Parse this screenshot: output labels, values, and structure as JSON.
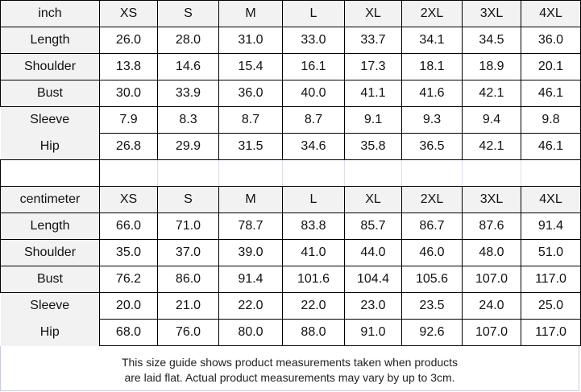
{
  "tables": [
    {
      "unit": "inch",
      "sizes": [
        "XS",
        "S",
        "M",
        "L",
        "XL",
        "2XL",
        "3XL",
        "4XL"
      ],
      "rows": [
        {
          "label": "Length",
          "values": [
            "26.0",
            "28.0",
            "31.0",
            "33.0",
            "33.7",
            "34.1",
            "34.5",
            "36.0"
          ]
        },
        {
          "label": "Shoulder",
          "values": [
            "13.8",
            "14.6",
            "15.4",
            "16.1",
            "17.3",
            "18.1",
            "18.9",
            "20.1"
          ]
        },
        {
          "label": "Bust",
          "values": [
            "30.0",
            "33.9",
            "36.0",
            "40.0",
            "41.1",
            "41.6",
            "42.1",
            "46.1"
          ]
        },
        {
          "label": "Sleeve",
          "values": [
            "7.9",
            "8.3",
            "8.7",
            "8.7",
            "9.1",
            "9.3",
            "9.4",
            "9.8"
          ]
        },
        {
          "label": "Hip",
          "values": [
            "26.8",
            "29.9",
            "31.5",
            "34.6",
            "35.8",
            "36.5",
            "42.1",
            "46.1"
          ]
        }
      ]
    },
    {
      "unit": "centimeter",
      "sizes": [
        "XS",
        "S",
        "M",
        "L",
        "XL",
        "2XL",
        "3XL",
        "4XL"
      ],
      "rows": [
        {
          "label": "Length",
          "values": [
            "66.0",
            "71.0",
            "78.7",
            "83.8",
            "85.7",
            "86.7",
            "87.6",
            "91.4"
          ]
        },
        {
          "label": "Shoulder",
          "values": [
            "35.0",
            "37.0",
            "39.0",
            "41.0",
            "44.0",
            "46.0",
            "48.0",
            "51.0"
          ]
        },
        {
          "label": "Bust",
          "values": [
            "76.2",
            "86.0",
            "91.4",
            "101.6",
            "104.4",
            "105.6",
            "107.0",
            "117.0"
          ]
        },
        {
          "label": "Sleeve",
          "values": [
            "20.0",
            "21.0",
            "22.0",
            "22.0",
            "23.0",
            "23.5",
            "24.0",
            "25.0"
          ]
        },
        {
          "label": "Hip",
          "values": [
            "68.0",
            "76.0",
            "80.0",
            "88.0",
            "91.0",
            "92.6",
            "107.0",
            "117.0"
          ]
        }
      ]
    }
  ],
  "note": {
    "line1": "This size guide shows product measurements taken when products",
    "line2": "are laid flat. Actual product measurements may vary by up to 3cm."
  }
}
